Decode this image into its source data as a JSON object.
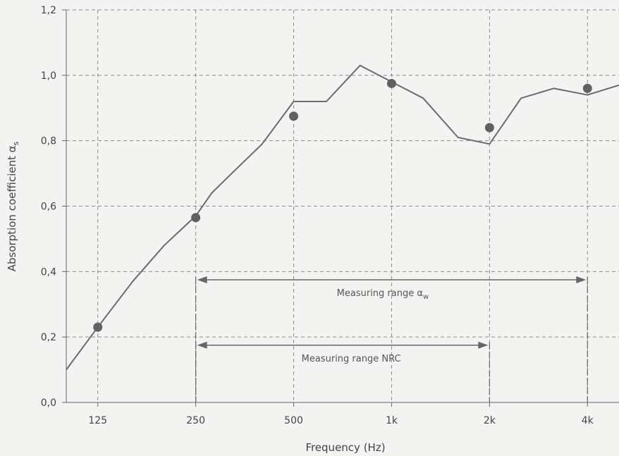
{
  "chart_data": {
    "type": "line",
    "title": "",
    "xlabel": "Frequency (Hz)",
    "ylabel": "Absorption coefficient α",
    "ylabel_subscript": "s",
    "x_scale": "log",
    "xlim": [
      100,
      5000
    ],
    "ylim": [
      0,
      1.2
    ],
    "grid": true,
    "grid_style": "dashed",
    "x_ticks": [
      {
        "value": 125,
        "label": "125"
      },
      {
        "value": 250,
        "label": "250"
      },
      {
        "value": 500,
        "label": "500"
      },
      {
        "value": 1000,
        "label": "1k"
      },
      {
        "value": 2000,
        "label": "2k"
      },
      {
        "value": 4000,
        "label": "4k"
      }
    ],
    "y_ticks": [
      {
        "value": 0.0,
        "label": "0,0"
      },
      {
        "value": 0.2,
        "label": "0,2"
      },
      {
        "value": 0.4,
        "label": "0,4"
      },
      {
        "value": 0.6,
        "label": "0,6"
      },
      {
        "value": 0.8,
        "label": "0,8"
      },
      {
        "value": 1.0,
        "label": "1,0"
      },
      {
        "value": 1.2,
        "label": "1,2"
      }
    ],
    "series": [
      {
        "kind": "line",
        "x": [
          100,
          125,
          160,
          200,
          250,
          280,
          315,
          400,
          500,
          630,
          800,
          1000,
          1250,
          1600,
          2000,
          2500,
          3150,
          4000,
          5000
        ],
        "y": [
          0.1,
          0.23,
          0.37,
          0.48,
          0.57,
          0.64,
          0.69,
          0.79,
          0.92,
          0.92,
          1.03,
          0.98,
          0.93,
          0.81,
          0.79,
          0.93,
          0.96,
          0.94,
          0.97
        ]
      },
      {
        "kind": "points",
        "x": [
          125,
          250,
          500,
          1000,
          2000,
          4000
        ],
        "y": [
          0.23,
          0.565,
          0.875,
          0.975,
          0.84,
          0.96
        ]
      }
    ],
    "ranges": [
      {
        "label": "Measuring range α",
        "label_subscript": "w",
        "from": 250,
        "to": 4000,
        "y": 0.375
      },
      {
        "label": "Measuring range NRC",
        "label_subscript": "",
        "from": 250,
        "to": 2000,
        "y": 0.175
      }
    ],
    "colors": {
      "line": "#6b6b6b",
      "points": "#616161",
      "grid": "#8a8a8a",
      "axis": "#666666",
      "text": "#444444",
      "background": "#f3f3f1"
    }
  }
}
